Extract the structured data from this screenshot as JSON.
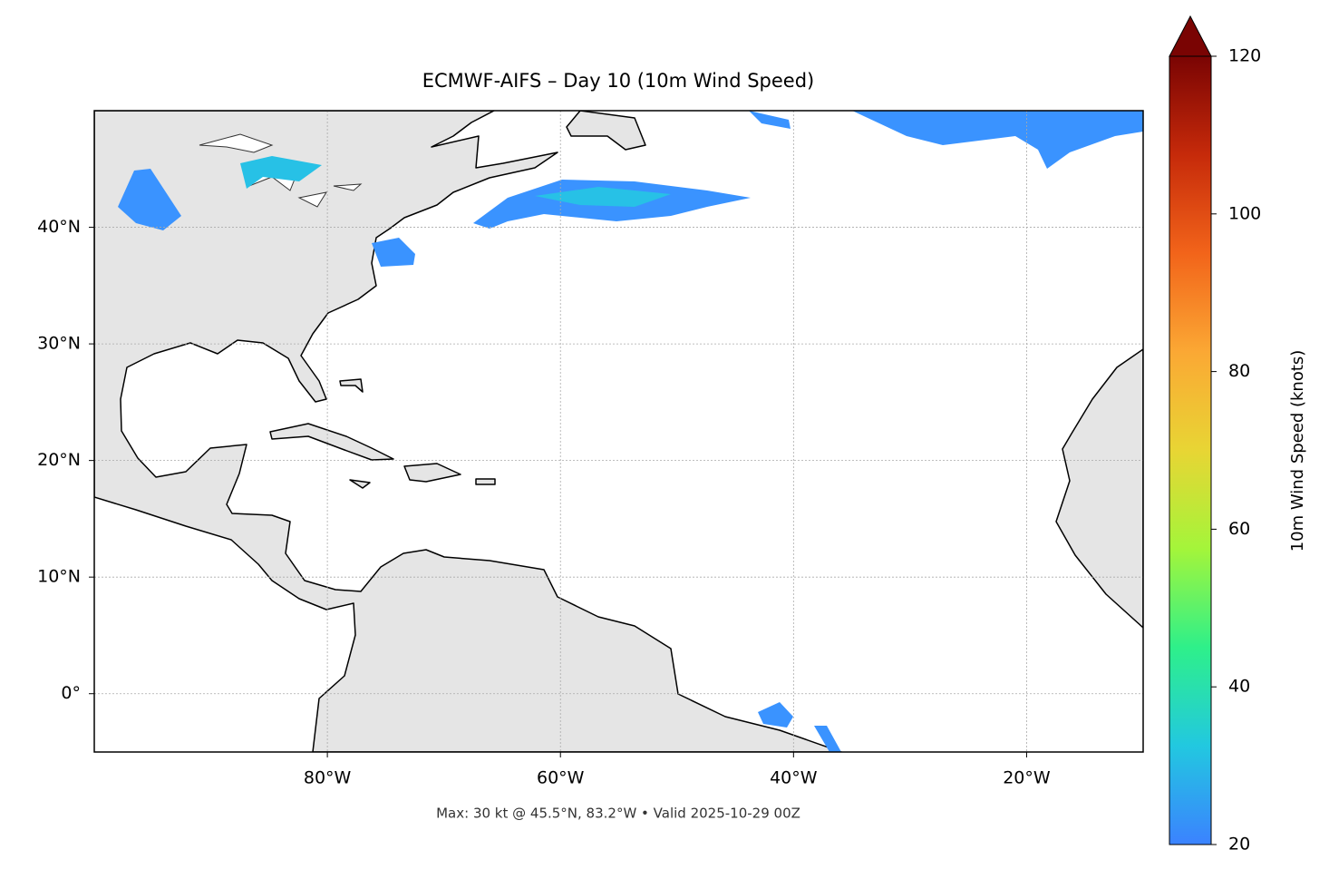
{
  "chart_data": {
    "type": "map",
    "title": "ECMWF-AIFS – Day 10 (10m Wind Speed)",
    "subtitle": "Max: 30 kt @ 45.5°N, 83.2°W • Valid 2025-10-29 00Z",
    "xlim": [
      -100,
      -10
    ],
    "xticks": [
      {
        "value": -80,
        "label": "80°W"
      },
      {
        "value": -60,
        "label": "60°W"
      },
      {
        "value": -40,
        "label": "40°W"
      },
      {
        "value": -20,
        "label": "20°W"
      }
    ],
    "ylim": [
      -5,
      50
    ],
    "yticks": [
      {
        "value": 0,
        "label": "0°"
      },
      {
        "value": 10,
        "label": "10°N"
      },
      {
        "value": 20,
        "label": "20°N"
      },
      {
        "value": 30,
        "label": "30°N"
      },
      {
        "value": 40,
        "label": "40°N"
      }
    ],
    "grid": true,
    "colorbar": {
      "label": "10m Wind Speed (knots)",
      "lim": [
        20,
        120
      ],
      "ticks": [
        20,
        40,
        60,
        80,
        100,
        120
      ],
      "colors": [
        "#3b82ff",
        "#22c8e0",
        "#2ef08a",
        "#a4f53a",
        "#e8d534",
        "#fba834",
        "#f2641a",
        "#c62a0a",
        "#7a0403"
      ]
    }
  }
}
